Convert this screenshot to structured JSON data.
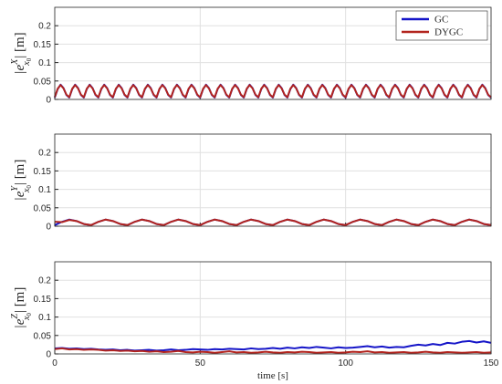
{
  "chart_data": [
    {
      "type": "line",
      "show_xtick_labels": false,
      "grid": true,
      "legend": "upper right",
      "ylabel": {
        "text": "|e",
        "sup": "X",
        "sub": "x",
        "subsub": "0",
        "tail": "| [m]"
      },
      "xlim": [
        0,
        150
      ],
      "xticks": [
        0,
        50,
        100,
        150
      ],
      "ylim": [
        0,
        0.25
      ],
      "yticks": [
        0,
        0.05,
        0.1,
        0.15,
        0.2
      ],
      "x": [
        0,
        1,
        2,
        3,
        4,
        5,
        6,
        7,
        8,
        9,
        10,
        11,
        12,
        13,
        14,
        15,
        16,
        17,
        18,
        19,
        20,
        21,
        22,
        23,
        24,
        25,
        26,
        27,
        28,
        29,
        30,
        31,
        32,
        33,
        34,
        35,
        36,
        37,
        38,
        39,
        40,
        41,
        42,
        43,
        44,
        45,
        46,
        47,
        48,
        49,
        50,
        51,
        52,
        53,
        54,
        55,
        56,
        57,
        58,
        59,
        60,
        61,
        62,
        63,
        64,
        65,
        66,
        67,
        68,
        69,
        70,
        71,
        72,
        73,
        74,
        75,
        76,
        77,
        78,
        79,
        80,
        81,
        82,
        83,
        84,
        85,
        86,
        87,
        88,
        89,
        90,
        91,
        92,
        93,
        94,
        95,
        96,
        97,
        98,
        99,
        100,
        101,
        102,
        103,
        104,
        105,
        106,
        107,
        108,
        109,
        110,
        111,
        112,
        113,
        114,
        115,
        116,
        117,
        118,
        119,
        120,
        121,
        122,
        123,
        124,
        125,
        126,
        127,
        128,
        129,
        130,
        131,
        132,
        133,
        134,
        135,
        136,
        137,
        138,
        139,
        140,
        141,
        142,
        143,
        144,
        145,
        146,
        147,
        148,
        149,
        150
      ],
      "series": [
        {
          "name": "GC",
          "color": "#1515c8",
          "values": [
            0.005,
            0.028,
            0.04,
            0.031,
            0.012,
            0.005,
            0.028,
            0.04,
            0.031,
            0.012,
            0.005,
            0.028,
            0.04,
            0.031,
            0.012,
            0.005,
            0.028,
            0.04,
            0.031,
            0.012,
            0.005,
            0.028,
            0.04,
            0.031,
            0.012,
            0.005,
            0.028,
            0.04,
            0.031,
            0.012,
            0.005,
            0.028,
            0.04,
            0.031,
            0.012,
            0.005,
            0.028,
            0.04,
            0.031,
            0.012,
            0.005,
            0.028,
            0.04,
            0.031,
            0.012,
            0.005,
            0.028,
            0.04,
            0.031,
            0.012,
            0.005,
            0.028,
            0.04,
            0.031,
            0.012,
            0.005,
            0.028,
            0.04,
            0.031,
            0.012,
            0.005,
            0.028,
            0.04,
            0.031,
            0.012,
            0.005,
            0.028,
            0.04,
            0.031,
            0.012,
            0.005,
            0.028,
            0.04,
            0.031,
            0.012,
            0.005,
            0.028,
            0.04,
            0.031,
            0.012,
            0.005,
            0.028,
            0.04,
            0.031,
            0.012,
            0.005,
            0.028,
            0.04,
            0.031,
            0.012,
            0.005,
            0.028,
            0.04,
            0.031,
            0.012,
            0.005,
            0.028,
            0.04,
            0.031,
            0.012,
            0.005,
            0.028,
            0.04,
            0.031,
            0.012,
            0.005,
            0.028,
            0.04,
            0.031,
            0.012,
            0.005,
            0.028,
            0.04,
            0.031,
            0.012,
            0.005,
            0.028,
            0.04,
            0.031,
            0.012,
            0.005,
            0.028,
            0.04,
            0.031,
            0.012,
            0.005,
            0.028,
            0.04,
            0.031,
            0.012,
            0.005,
            0.028,
            0.04,
            0.031,
            0.012,
            0.005,
            0.028,
            0.04,
            0.031,
            0.012,
            0.005,
            0.028,
            0.04,
            0.031,
            0.012,
            0.005,
            0.028,
            0.04,
            0.031,
            0.012,
            0.005
          ]
        },
        {
          "name": "DYGC",
          "color": "#b2241e",
          "values": [
            0.006,
            0.029,
            0.039,
            0.03,
            0.013,
            0.006,
            0.029,
            0.039,
            0.03,
            0.013,
            0.006,
            0.029,
            0.039,
            0.03,
            0.013,
            0.006,
            0.029,
            0.039,
            0.03,
            0.013,
            0.006,
            0.029,
            0.039,
            0.03,
            0.013,
            0.006,
            0.029,
            0.039,
            0.03,
            0.013,
            0.006,
            0.029,
            0.039,
            0.03,
            0.013,
            0.006,
            0.029,
            0.039,
            0.03,
            0.013,
            0.006,
            0.029,
            0.039,
            0.03,
            0.013,
            0.006,
            0.029,
            0.039,
            0.03,
            0.013,
            0.006,
            0.029,
            0.039,
            0.03,
            0.013,
            0.006,
            0.029,
            0.039,
            0.03,
            0.013,
            0.006,
            0.029,
            0.039,
            0.03,
            0.013,
            0.006,
            0.029,
            0.039,
            0.03,
            0.013,
            0.006,
            0.029,
            0.039,
            0.03,
            0.013,
            0.006,
            0.029,
            0.039,
            0.03,
            0.013,
            0.006,
            0.029,
            0.039,
            0.03,
            0.013,
            0.006,
            0.029,
            0.039,
            0.03,
            0.013,
            0.006,
            0.029,
            0.039,
            0.03,
            0.013,
            0.006,
            0.029,
            0.039,
            0.03,
            0.013,
            0.006,
            0.029,
            0.039,
            0.03,
            0.013,
            0.006,
            0.029,
            0.039,
            0.03,
            0.013,
            0.006,
            0.029,
            0.039,
            0.03,
            0.013,
            0.006,
            0.029,
            0.039,
            0.03,
            0.013,
            0.006,
            0.029,
            0.039,
            0.03,
            0.013,
            0.006,
            0.029,
            0.039,
            0.03,
            0.013,
            0.006,
            0.029,
            0.039,
            0.03,
            0.013,
            0.006,
            0.029,
            0.039,
            0.03,
            0.013,
            0.006,
            0.029,
            0.039,
            0.03,
            0.013,
            0.006,
            0.029,
            0.039,
            0.03,
            0.013,
            0.006
          ]
        }
      ]
    },
    {
      "type": "line",
      "show_xtick_labels": false,
      "grid": true,
      "ylabel": {
        "text": "|e",
        "sup": "Y",
        "sub": "x",
        "subsub": "0",
        "tail": "| [m]"
      },
      "xlim": [
        0,
        150
      ],
      "xticks": [
        0,
        50,
        100,
        150
      ],
      "ylim": [
        0,
        0.25
      ],
      "yticks": [
        0,
        0.05,
        0.1,
        0.15,
        0.2
      ],
      "x": [
        0,
        2.5,
        5,
        7.5,
        10,
        12.5,
        15,
        17.5,
        20,
        22.5,
        25,
        27.5,
        30,
        32.5,
        35,
        37.5,
        40,
        42.5,
        45,
        47.5,
        50,
        52.5,
        55,
        57.5,
        60,
        62.5,
        65,
        67.5,
        70,
        72.5,
        75,
        77.5,
        80,
        82.5,
        85,
        87.5,
        90,
        92.5,
        95,
        97.5,
        100,
        102.5,
        105,
        107.5,
        110,
        112.5,
        115,
        117.5,
        120,
        122.5,
        125,
        127.5,
        130,
        132.5,
        135,
        137.5,
        140,
        142.5,
        145,
        147.5,
        150
      ],
      "series": [
        {
          "name": "GC",
          "color": "#1515c8",
          "values": [
            0.003,
            0.012,
            0.018,
            0.014,
            0.006,
            0.003,
            0.012,
            0.018,
            0.014,
            0.006,
            0.003,
            0.012,
            0.018,
            0.014,
            0.006,
            0.003,
            0.012,
            0.018,
            0.014,
            0.006,
            0.003,
            0.012,
            0.018,
            0.014,
            0.006,
            0.003,
            0.012,
            0.018,
            0.014,
            0.006,
            0.003,
            0.012,
            0.018,
            0.014,
            0.006,
            0.003,
            0.012,
            0.018,
            0.014,
            0.006,
            0.003,
            0.012,
            0.018,
            0.014,
            0.006,
            0.003,
            0.012,
            0.018,
            0.014,
            0.006,
            0.003,
            0.012,
            0.018,
            0.014,
            0.006,
            0.003,
            0.012,
            0.018,
            0.014,
            0.006,
            0.003
          ]
        },
        {
          "name": "DYGC",
          "color": "#b2241e",
          "values": [
            0.012,
            0.011,
            0.017,
            0.014,
            0.006,
            0.003,
            0.012,
            0.018,
            0.014,
            0.006,
            0.003,
            0.012,
            0.018,
            0.014,
            0.006,
            0.003,
            0.012,
            0.018,
            0.014,
            0.006,
            0.003,
            0.012,
            0.018,
            0.014,
            0.006,
            0.003,
            0.012,
            0.018,
            0.014,
            0.006,
            0.003,
            0.012,
            0.018,
            0.014,
            0.006,
            0.003,
            0.012,
            0.018,
            0.014,
            0.006,
            0.003,
            0.012,
            0.018,
            0.014,
            0.006,
            0.003,
            0.012,
            0.018,
            0.014,
            0.006,
            0.003,
            0.012,
            0.018,
            0.014,
            0.006,
            0.003,
            0.012,
            0.018,
            0.014,
            0.006,
            0.003
          ]
        }
      ]
    },
    {
      "type": "line",
      "show_xtick_labels": true,
      "grid": true,
      "xlabel": "time [s]",
      "ylabel": {
        "text": "|e",
        "sup": "Z",
        "sub": "x",
        "subsub": "0",
        "tail": "| [m]"
      },
      "xlim": [
        0,
        150
      ],
      "xticks": [
        0,
        50,
        100,
        150
      ],
      "ylim": [
        0,
        0.25
      ],
      "yticks": [
        0,
        0.05,
        0.1,
        0.15,
        0.2
      ],
      "x": [
        0,
        2.5,
        5,
        7.5,
        10,
        12.5,
        15,
        17.5,
        20,
        22.5,
        25,
        27.5,
        30,
        32.5,
        35,
        37.5,
        40,
        42.5,
        45,
        47.5,
        50,
        52.5,
        55,
        57.5,
        60,
        62.5,
        65,
        67.5,
        70,
        72.5,
        75,
        77.5,
        80,
        82.5,
        85,
        87.5,
        90,
        92.5,
        95,
        97.5,
        100,
        102.5,
        105,
        107.5,
        110,
        112.5,
        115,
        117.5,
        120,
        122.5,
        125,
        127.5,
        130,
        132.5,
        135,
        137.5,
        140,
        142.5,
        145,
        147.5,
        150
      ],
      "series": [
        {
          "name": "GC",
          "color": "#1515c8",
          "values": [
            0.015,
            0.016,
            0.014,
            0.015,
            0.013,
            0.014,
            0.012,
            0.011,
            0.012,
            0.01,
            0.011,
            0.009,
            0.01,
            0.011,
            0.009,
            0.01,
            0.012,
            0.01,
            0.011,
            0.013,
            0.012,
            0.011,
            0.013,
            0.012,
            0.014,
            0.013,
            0.012,
            0.015,
            0.013,
            0.014,
            0.016,
            0.014,
            0.017,
            0.015,
            0.018,
            0.016,
            0.019,
            0.017,
            0.015,
            0.018,
            0.016,
            0.017,
            0.019,
            0.021,
            0.018,
            0.02,
            0.017,
            0.019,
            0.018,
            0.022,
            0.025,
            0.023,
            0.027,
            0.024,
            0.03,
            0.028,
            0.033,
            0.035,
            0.031,
            0.034,
            0.03
          ]
        },
        {
          "name": "DYGC",
          "color": "#b2241e",
          "values": [
            0.013,
            0.015,
            0.012,
            0.013,
            0.011,
            0.012,
            0.011,
            0.009,
            0.01,
            0.008,
            0.009,
            0.007,
            0.008,
            0.006,
            0.007,
            0.005,
            0.006,
            0.008,
            0.005,
            0.004,
            0.006,
            0.005,
            0.003,
            0.005,
            0.007,
            0.004,
            0.005,
            0.003,
            0.004,
            0.006,
            0.004,
            0.003,
            0.005,
            0.004,
            0.006,
            0.005,
            0.003,
            0.004,
            0.005,
            0.003,
            0.004,
            0.006,
            0.005,
            0.007,
            0.004,
            0.005,
            0.003,
            0.004,
            0.005,
            0.003,
            0.004,
            0.006,
            0.004,
            0.003,
            0.005,
            0.004,
            0.003,
            0.004,
            0.005,
            0.003,
            0.004
          ]
        }
      ]
    }
  ]
}
